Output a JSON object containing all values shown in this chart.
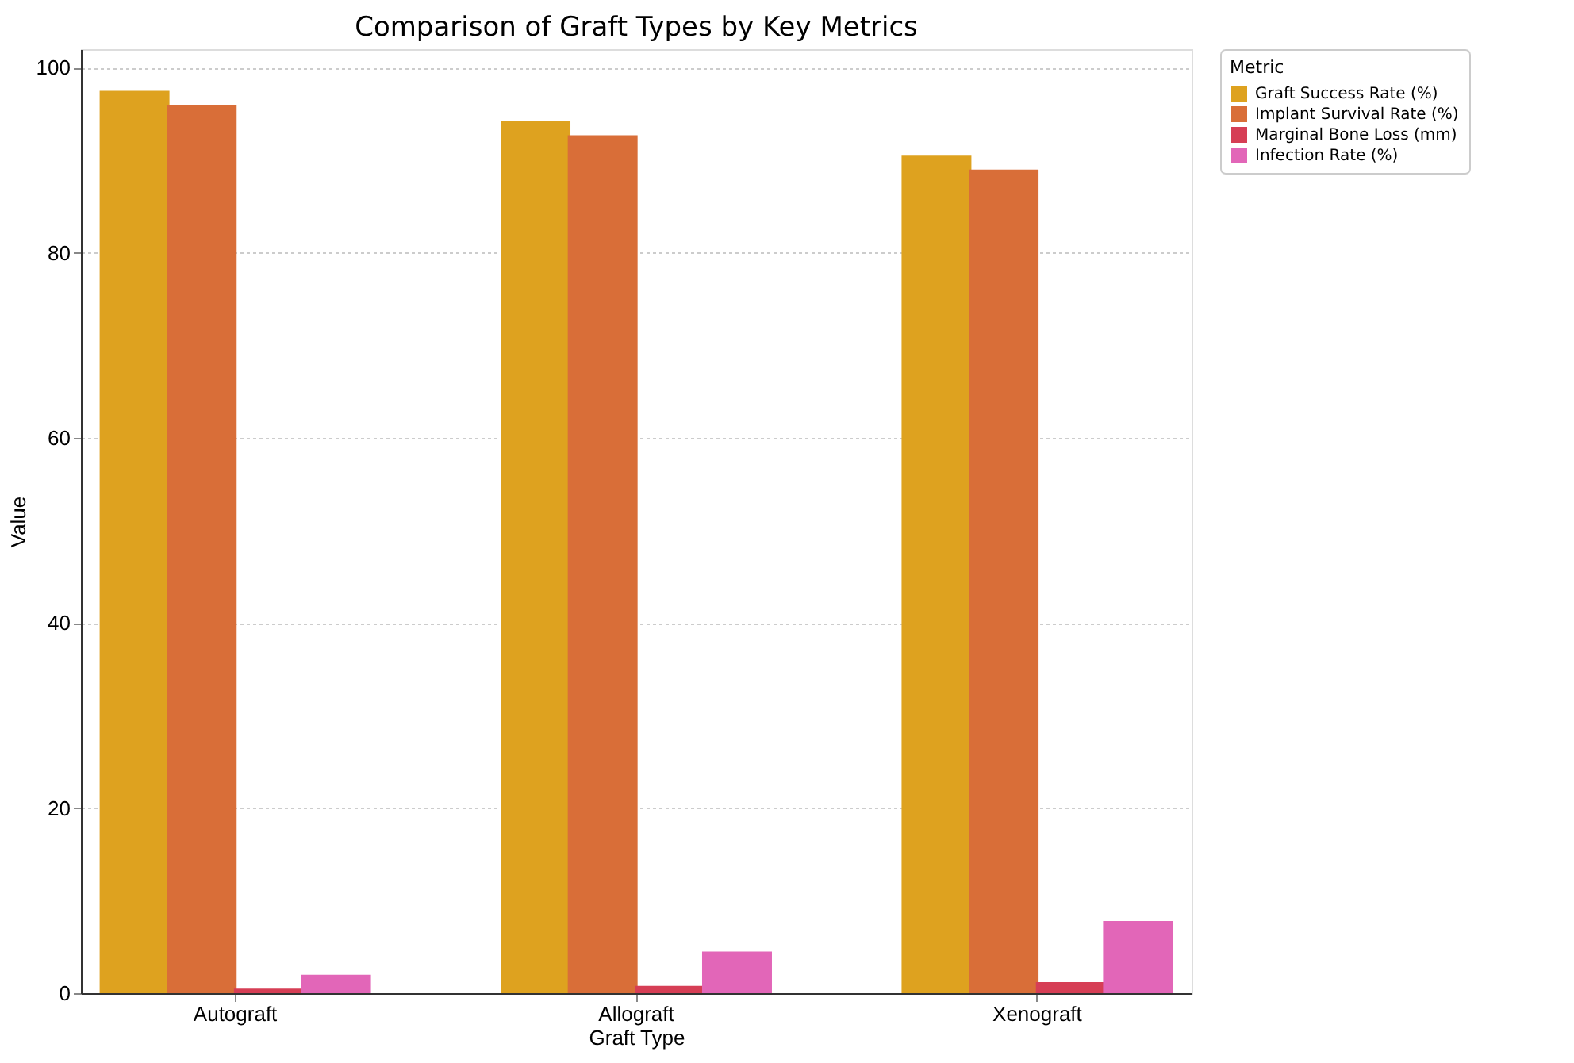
{
  "chart_data": {
    "type": "bar",
    "title": "Comparison of Graft Types by Key Metrics",
    "xlabel": "Graft Type",
    "ylabel": "Value",
    "legend_title": "Metric",
    "categories": [
      "Autograft",
      "Allograft",
      "Xenograft"
    ],
    "series": [
      {
        "name": "Graft Success Rate (%)",
        "color": "#dea21f",
        "values": [
          97.5,
          94.2,
          90.5
        ]
      },
      {
        "name": "Implant Survival Rate (%)",
        "color": "#d96e38",
        "values": [
          96.0,
          92.7,
          89.0
        ]
      },
      {
        "name": "Marginal Bone Loss (mm)",
        "color": "#d63e55",
        "values": [
          0.5,
          0.8,
          1.2
        ]
      },
      {
        "name": "Infection Rate (%)",
        "color": "#e266b8",
        "values": [
          2.0,
          4.5,
          7.8
        ]
      }
    ],
    "ylim": [
      0,
      102
    ],
    "yticks": [
      0,
      20,
      40,
      60,
      80,
      100
    ],
    "grid": "y",
    "legend": "top right"
  }
}
